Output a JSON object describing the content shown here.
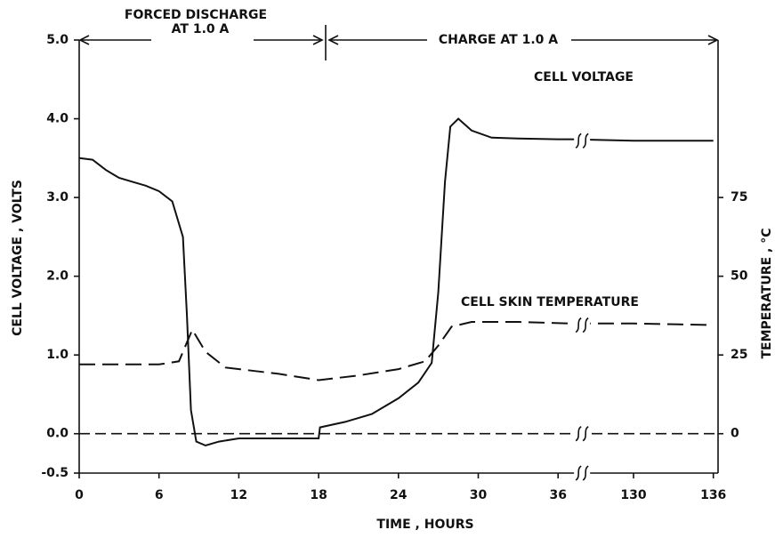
{
  "chart_data": {
    "type": "line",
    "title_annotations": [
      "FORCED DISCHARGE",
      "AT 1.0 A",
      "CHARGE AT 1.0 A"
    ],
    "xlabel": "TIME , HOURS",
    "ylabel": "CELL VOLTAGE , VOLTS",
    "y2label": "TEMPERATURE , °C",
    "xlim": [
      0,
      136
    ],
    "x_break": [
      37,
      129
    ],
    "xticks": [
      0,
      6,
      12,
      18,
      24,
      30,
      36,
      130,
      136
    ],
    "ylim": [
      -0.5,
      5.0
    ],
    "yticks": [
      -0.5,
      {
        "value": 0,
        "label": "0.0"
      },
      {
        "value": 1,
        "label": "1.0"
      },
      {
        "value": 2,
        "label": "2.0"
      },
      {
        "value": 3,
        "label": "3.0"
      },
      {
        "value": 4,
        "label": "4.0"
      },
      {
        "value": 5,
        "label": "5.0"
      }
    ],
    "y2lim": [
      -12.5,
      125
    ],
    "y2ticks": [
      0,
      25,
      50,
      75
    ],
    "series": [
      {
        "name": "CELL VOLTAGE",
        "color": "#111111",
        "dash": false,
        "x": [
          0,
          1,
          2,
          3,
          4,
          5,
          6,
          7,
          7.8,
          8.1,
          8.4,
          8.8,
          9.5,
          10.5,
          12,
          15,
          18,
          18.1,
          20,
          22,
          24,
          25.5,
          26.5,
          27,
          27.5,
          27.9,
          28.5,
          29.5,
          31,
          33,
          36,
          37,
          130,
          136
        ],
        "values": [
          3.5,
          3.48,
          3.35,
          3.25,
          3.2,
          3.15,
          3.08,
          2.95,
          2.5,
          1.5,
          0.3,
          -0.1,
          -0.15,
          -0.1,
          -0.06,
          -0.06,
          -0.06,
          0.08,
          0.15,
          0.25,
          0.45,
          0.65,
          0.9,
          1.8,
          3.2,
          3.9,
          4.0,
          3.85,
          3.76,
          3.75,
          3.74,
          3.74,
          3.72,
          3.72
        ]
      },
      {
        "name": "CELL SKIN TEMPERATURE",
        "color": "#111111",
        "dash": true,
        "axis": "y2",
        "x": [
          0,
          6,
          7.5,
          8.5,
          9.5,
          11,
          15,
          18,
          21,
          24,
          26,
          27,
          28,
          29.5,
          33,
          37,
          130,
          136
        ],
        "values": [
          22,
          22,
          23,
          33,
          26,
          21,
          19,
          17,
          18.5,
          20.5,
          23,
          28,
          34,
          35.5,
          35.5,
          35,
          35,
          34.5
        ]
      }
    ]
  }
}
